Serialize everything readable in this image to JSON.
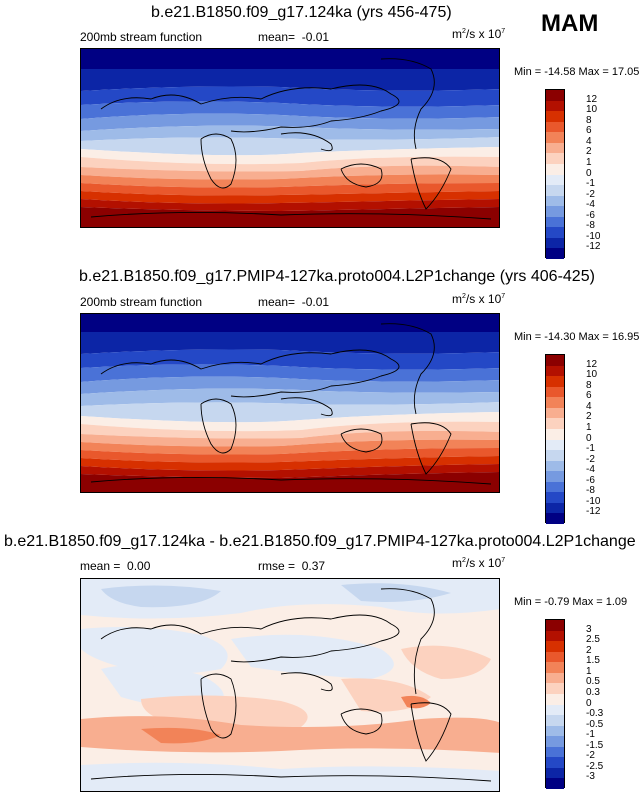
{
  "season": "MAM",
  "panels": [
    {
      "title": "b.e21.B1850.f09_g17.124ka (yrs 456-475)",
      "variable": "200mb stream function",
      "stat_label": "mean=",
      "stat_value": "-0.01",
      "units_base": "m",
      "units_mid": "/s x 10",
      "units_sup1": "2",
      "units_sup2": "7",
      "min_label": "Min =",
      "min_value": "-14.58",
      "max_label": "Max =",
      "max_value": "17.05",
      "colorbar_labels": [
        "12",
        "10",
        "8",
        "6",
        "4",
        "2",
        "1",
        "0",
        "-1",
        "-2",
        "-4",
        "-6",
        "-8",
        "-10",
        "-12"
      ]
    },
    {
      "title": "b.e21.B1850.f09_g17.PMIP4-127ka.proto004.L2P1change (yrs 406-425)",
      "variable": "200mb stream function",
      "stat_label": "mean=",
      "stat_value": "-0.01",
      "units_base": "m",
      "units_mid": "/s x 10",
      "units_sup1": "2",
      "units_sup2": "7",
      "min_label": "Min =",
      "min_value": "-14.30",
      "max_label": "Max =",
      "max_value": "16.95",
      "colorbar_labels": [
        "12",
        "10",
        "8",
        "6",
        "4",
        "2",
        "1",
        "0",
        "-1",
        "-2",
        "-4",
        "-6",
        "-8",
        "-10",
        "-12"
      ]
    },
    {
      "title": "b.e21.B1850.f09_g17.124ka - b.e21.B1850.f09_g17.PMIP4-127ka.proto004.L2P1change",
      "variable": "",
      "stat_label": "mean =",
      "stat_value": "0.00",
      "stat2_label": "rmse =",
      "stat2_value": "0.37",
      "units_base": "m",
      "units_mid": "/s x 10",
      "units_sup1": "2",
      "units_sup2": "7",
      "min_label": "Min =",
      "min_value": "-0.79",
      "max_label": "Max =",
      "max_value": "1.09",
      "colorbar_labels": [
        "3",
        "2.5",
        "2",
        "1.5",
        "1",
        "0.5",
        "0.3",
        "0",
        "-0.3",
        "-0.5",
        "-1",
        "-1.5",
        "-2",
        "-2.5",
        "-3"
      ]
    }
  ],
  "colors": {
    "scale": [
      "#8b0000",
      "#b31000",
      "#d73000",
      "#e9582c",
      "#f28358",
      "#f8ae90",
      "#fcd2bf",
      "#fbeee6",
      "#e3ebf7",
      "#c6d7ef",
      "#9ebbe8",
      "#769ae0",
      "#4a72d7",
      "#2448c6",
      "#0c25a6",
      "#000083"
    ]
  }
}
